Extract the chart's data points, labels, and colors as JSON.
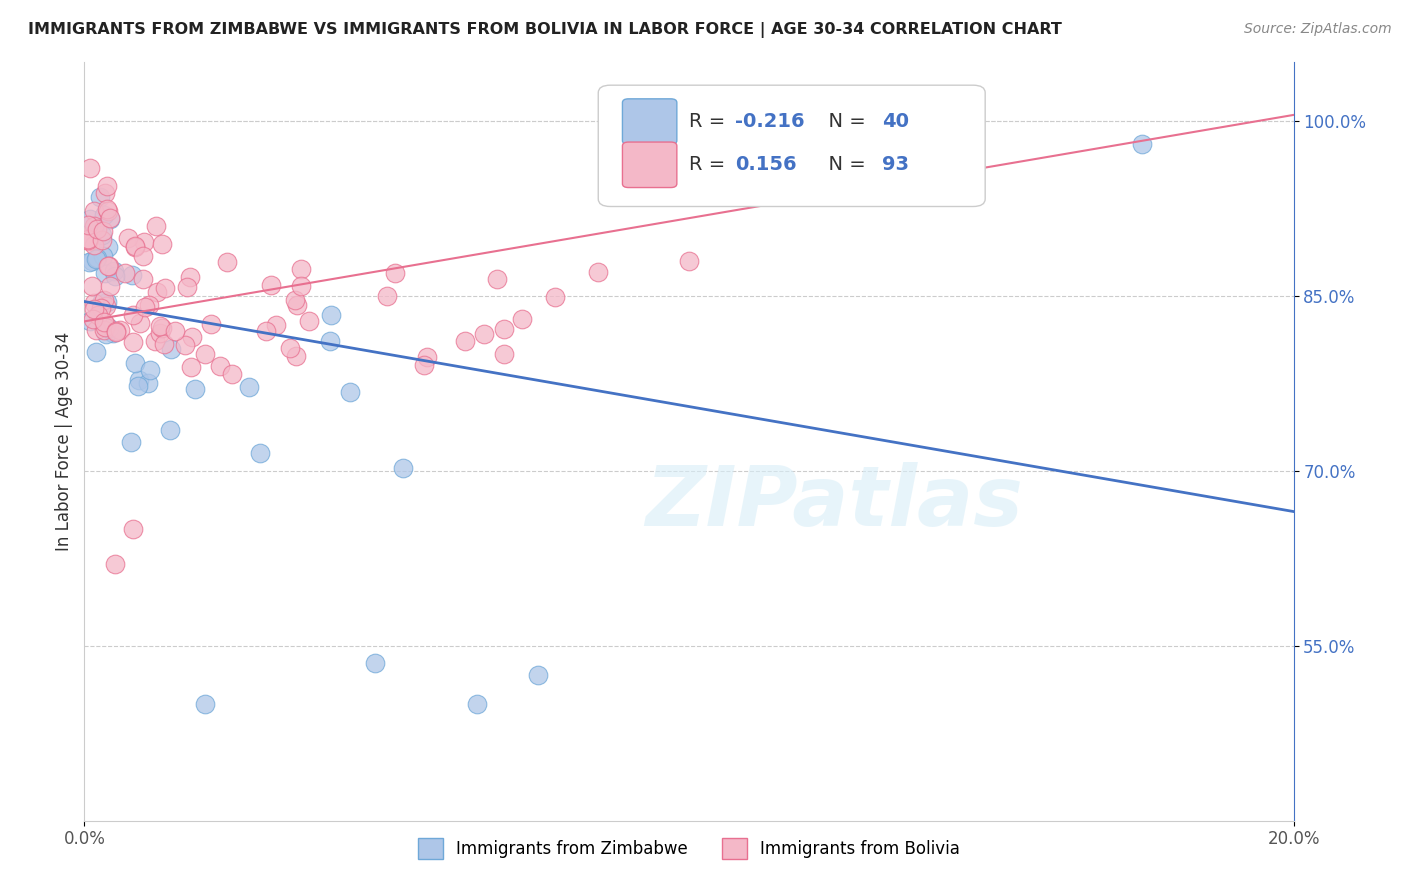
{
  "title": "IMMIGRANTS FROM ZIMBABWE VS IMMIGRANTS FROM BOLIVIA IN LABOR FORCE | AGE 30-34 CORRELATION CHART",
  "source": "Source: ZipAtlas.com",
  "ylabel": "In Labor Force | Age 30-34",
  "xlim": [
    0.0,
    0.2
  ],
  "ylim": [
    0.4,
    1.05
  ],
  "yticks": [
    0.55,
    0.7,
    0.85,
    1.0
  ],
  "ytick_labels": [
    "55.0%",
    "70.0%",
    "85.0%",
    "100.0%"
  ],
  "xticks": [
    0.0,
    0.2
  ],
  "xtick_labels": [
    "0.0%",
    "20.0%"
  ],
  "zimbabwe_color": "#aec6e8",
  "bolivia_color": "#f4b8c8",
  "zimbabwe_edge": "#6fa8d8",
  "bolivia_edge": "#e87090",
  "trend_zimbabwe_color": "#4472c4",
  "trend_bolivia_color": "#e87090",
  "legend_r_zimbabwe": "-0.216",
  "legend_n_zimbabwe": "40",
  "legend_r_bolivia": "0.156",
  "legend_n_bolivia": "93",
  "watermark": "ZIPatlas",
  "zim_trend_x": [
    0.0,
    0.2
  ],
  "zim_trend_y": [
    0.845,
    0.665
  ],
  "bol_trend_x": [
    0.0,
    0.2
  ],
  "bol_trend_y": [
    0.828,
    1.005
  ],
  "background_color": "#ffffff",
  "grid_color": "#cccccc",
  "tick_color_y": "#4472c4",
  "tick_color_x": "#555555",
  "spine_color": "#cccccc",
  "title_fontsize": 11.5,
  "source_fontsize": 10,
  "ylabel_fontsize": 12,
  "ytick_fontsize": 12,
  "xtick_fontsize": 12
}
